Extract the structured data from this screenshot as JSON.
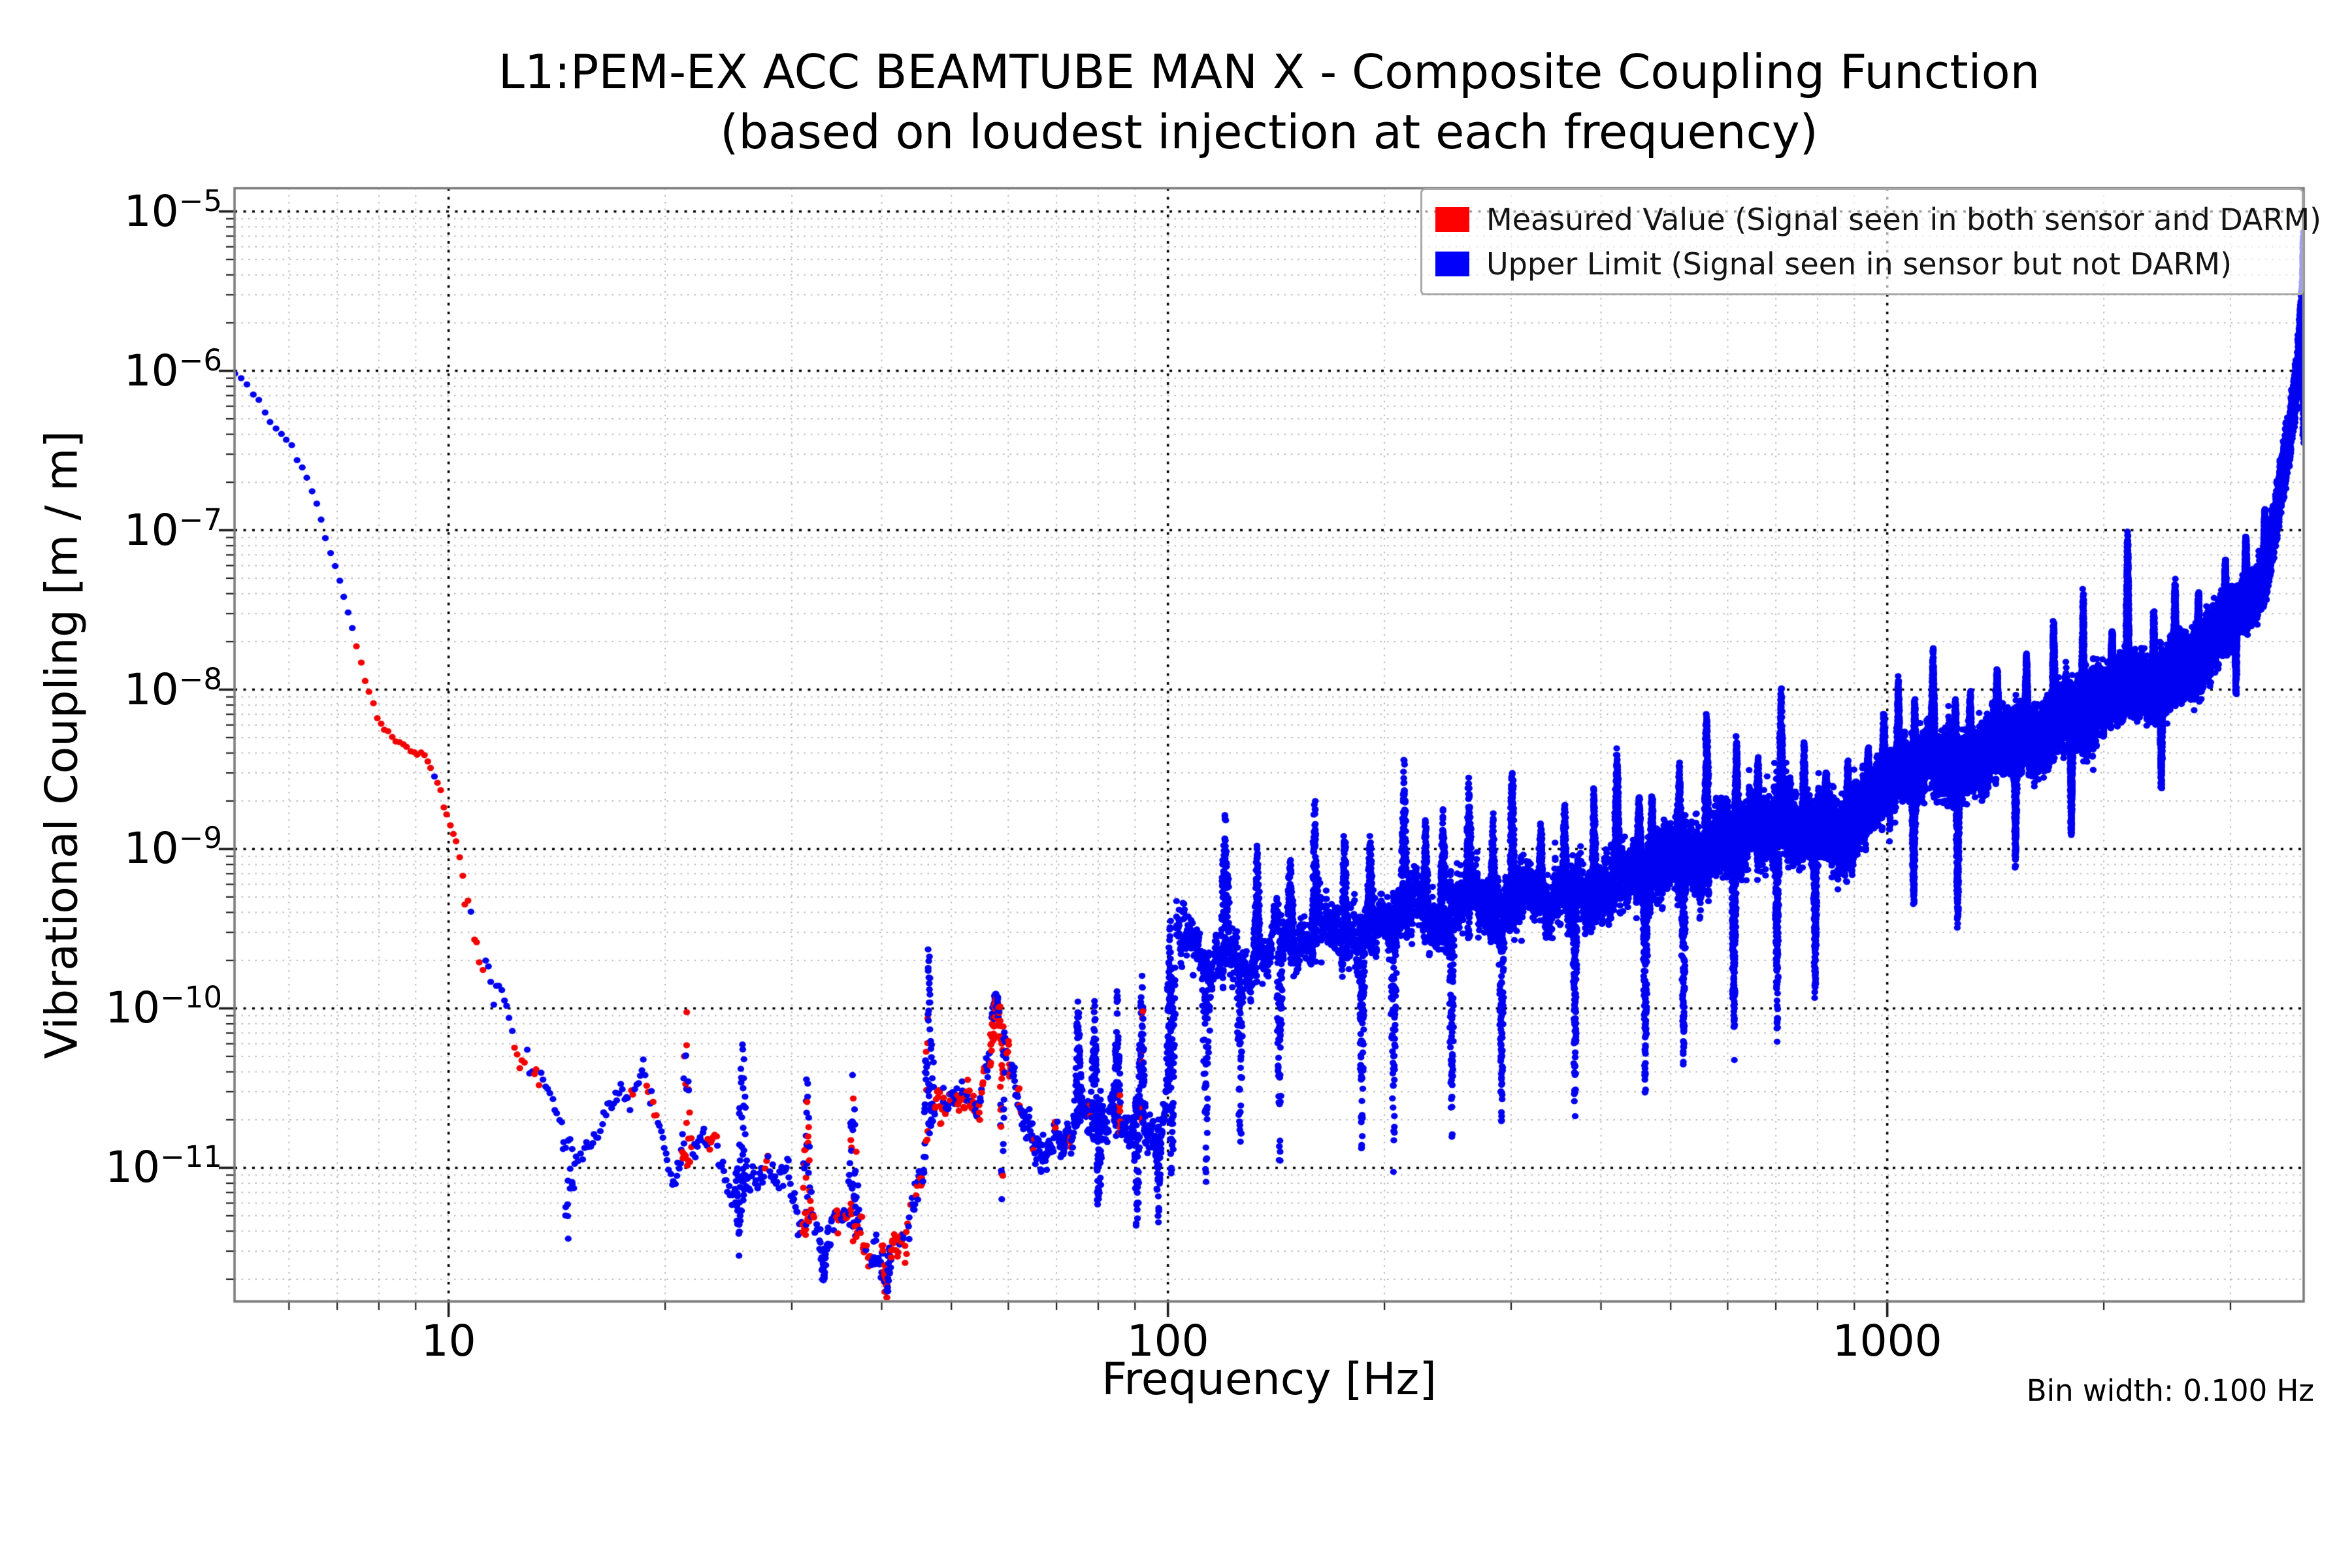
{
  "chart_data": {
    "type": "scatter",
    "title": "L1:PEM-EX ACC BEAMTUBE MAN X - Composite Coupling Function",
    "subtitle": "(based on loudest injection at each frequency)",
    "xlabel": "Frequency [Hz]",
    "ylabel": "Vibrational Coupling [m / m]",
    "annotation": "Bin width: 0.100 Hz",
    "xscale": "log",
    "yscale": "log",
    "grid": "major-and-minor-dotted",
    "legend_position": "upper right",
    "xlim": [
      5.04,
      3792
    ],
    "ylim": [
      1.45e-12,
      1.4e-05
    ],
    "x_ticks": [
      {
        "v": 10,
        "label": "10"
      },
      {
        "v": 100,
        "label": "100"
      },
      {
        "v": 1000,
        "label": "1000"
      }
    ],
    "y_ticks": [
      {
        "exp": -5,
        "base": "10",
        "sup": "−5"
      },
      {
        "exp": -6,
        "base": "10",
        "sup": "−6"
      },
      {
        "exp": -7,
        "base": "10",
        "sup": "−7"
      },
      {
        "exp": -8,
        "base": "10",
        "sup": "−8"
      },
      {
        "exp": -9,
        "base": "10",
        "sup": "−9"
      },
      {
        "exp": -10,
        "base": "10",
        "sup": "−10"
      },
      {
        "exp": -11,
        "base": "10",
        "sup": "−11"
      }
    ],
    "legend": [
      {
        "label": "Measured Value (Signal seen in both sensor and DARM)",
        "color": "#fd0000",
        "series": "measured"
      },
      {
        "label": "Upper Limit (Signal seen in sensor but not DARM)",
        "color": "#0000fb",
        "series": "upper_limit"
      }
    ],
    "style": {
      "marker_red": "#f40000",
      "marker_blue": "#0101f2",
      "marker_diameter_px": 10,
      "grid_major": "#000000",
      "grid_minor": "#b9b9b9",
      "spine": "#7a7a7a",
      "tick": "#1a1a1a",
      "legend_border": "#a8a8a8",
      "legend_bg_alpha": 0.62
    },
    "bin_width_hz": 0.1,
    "generation_note": "Scatter of ~38000 0.1-Hz bins reconstructed from envelope anchors [Hz, log10(coupling)], regions [f0,f1,log-spread,red-fraction], spikes/dips [Hz, half-width Hz, target log10].",
    "seed": 7,
    "fmin": 5.05,
    "fmax": 3795,
    "envelope": [
      [
        5.0,
        -6.0
      ],
      [
        5.3,
        -6.3
      ],
      [
        5.6,
        -6.5
      ],
      [
        5.9,
        -6.6
      ],
      [
        6.2,
        -6.85
      ],
      [
        6.5,
        -7.1
      ],
      [
        6.8,
        -7.45
      ],
      [
        7.1,
        -7.75
      ],
      [
        7.35,
        -8.0
      ],
      [
        7.5,
        -8.3
      ],
      [
        8.0,
        -8.42
      ],
      [
        8.6,
        -8.38
      ],
      [
        9.2,
        -8.45
      ],
      [
        9.5,
        -8.7
      ],
      [
        9.8,
        -8.95
      ],
      [
        10.1,
        -9.15
      ],
      [
        10.4,
        -9.5
      ],
      [
        10.7,
        -9.75
      ],
      [
        11.2,
        -10.0
      ],
      [
        11.8,
        -10.2
      ],
      [
        12.4,
        -10.4
      ],
      [
        13.0,
        -10.5
      ],
      [
        13.6,
        -10.65
      ],
      [
        14.2,
        -10.85
      ],
      [
        14.8,
        -11.05
      ],
      [
        15.4,
        -10.95
      ],
      [
        16.0,
        -10.75
      ],
      [
        16.8,
        -10.5
      ],
      [
        17.6,
        -10.6
      ],
      [
        18.3,
        -10.35
      ],
      [
        19.0,
        -10.65
      ],
      [
        19.8,
        -10.95
      ],
      [
        20.8,
        -11.1
      ],
      [
        21.8,
        -10.75
      ],
      [
        22.8,
        -10.85
      ],
      [
        23.8,
        -11.0
      ],
      [
        25.0,
        -11.15
      ],
      [
        26.2,
        -10.95
      ],
      [
        27.4,
        -11.1
      ],
      [
        28.6,
        -11.05
      ],
      [
        30.0,
        -11.15
      ],
      [
        31.5,
        -11.3
      ],
      [
        33.0,
        -11.4
      ],
      [
        34.5,
        -11.35
      ],
      [
        36.0,
        -11.3
      ],
      [
        37.5,
        -11.45
      ],
      [
        39.0,
        -11.55
      ],
      [
        40.5,
        -11.55
      ],
      [
        42.0,
        -11.45
      ],
      [
        43.5,
        -11.25
      ],
      [
        45.0,
        -11.0
      ],
      [
        46.0,
        -10.75
      ],
      [
        47.5,
        -10.6
      ],
      [
        49.0,
        -10.62
      ],
      [
        50.5,
        -10.55
      ],
      [
        52.0,
        -10.6
      ],
      [
        54.0,
        -10.5
      ],
      [
        56.0,
        -10.28
      ],
      [
        57.5,
        -10.05
      ],
      [
        58.8,
        -10.2
      ],
      [
        60.0,
        -10.3
      ],
      [
        61.5,
        -10.55
      ],
      [
        63.0,
        -10.8
      ],
      [
        65.0,
        -10.85
      ],
      [
        67.0,
        -10.9
      ],
      [
        69.0,
        -10.8
      ],
      [
        71.0,
        -10.75
      ],
      [
        73.5,
        -10.8
      ],
      [
        76.0,
        -10.62
      ],
      [
        78.5,
        -10.8
      ],
      [
        81.0,
        -10.62
      ],
      [
        84.0,
        -10.7
      ],
      [
        87.0,
        -10.8
      ],
      [
        90.0,
        -10.65
      ],
      [
        93.0,
        -10.78
      ],
      [
        96.0,
        -10.9
      ],
      [
        98.5,
        -10.7
      ],
      [
        100.0,
        -10.3
      ],
      [
        101.5,
        -9.85
      ],
      [
        103.0,
        -9.62
      ],
      [
        105.0,
        -9.55
      ],
      [
        108.0,
        -9.6
      ],
      [
        112.0,
        -9.7
      ],
      [
        116.0,
        -9.72
      ],
      [
        120.0,
        -9.55
      ],
      [
        125.0,
        -9.68
      ],
      [
        130.0,
        -9.78
      ],
      [
        136.0,
        -9.6
      ],
      [
        142.0,
        -9.52
      ],
      [
        150.0,
        -9.6
      ],
      [
        158.0,
        -9.52
      ],
      [
        166.0,
        -9.45
      ],
      [
        175.0,
        -9.55
      ],
      [
        185.0,
        -9.6
      ],
      [
        195.0,
        -9.5
      ],
      [
        207.0,
        -9.42
      ],
      [
        220.0,
        -9.32
      ],
      [
        235.0,
        -9.45
      ],
      [
        250.0,
        -9.35
      ],
      [
        265.0,
        -9.28
      ],
      [
        280.0,
        -9.4
      ],
      [
        300.0,
        -9.3
      ],
      [
        320.0,
        -9.25
      ],
      [
        340.0,
        -9.35
      ],
      [
        360.0,
        -9.27
      ],
      [
        385.0,
        -9.3
      ],
      [
        410.0,
        -9.2
      ],
      [
        435.0,
        -9.12
      ],
      [
        460.0,
        -9.2
      ],
      [
        490.0,
        -9.08
      ],
      [
        520.0,
        -9.02
      ],
      [
        550.0,
        -9.1
      ],
      [
        580.0,
        -8.95
      ],
      [
        610.0,
        -9.0
      ],
      [
        645.0,
        -8.88
      ],
      [
        680.0,
        -8.92
      ],
      [
        715.0,
        -8.78
      ],
      [
        750.0,
        -8.88
      ],
      [
        790.0,
        -8.9
      ],
      [
        830.0,
        -8.85
      ],
      [
        870.0,
        -8.95
      ],
      [
        910.0,
        -8.82
      ],
      [
        950.0,
        -8.72
      ],
      [
        1000.0,
        -8.62
      ],
      [
        1050.0,
        -8.48
      ],
      [
        1100.0,
        -8.52
      ],
      [
        1150.0,
        -8.38
      ],
      [
        1200.0,
        -8.48
      ],
      [
        1250.0,
        -8.55
      ],
      [
        1300.0,
        -8.42
      ],
      [
        1360.0,
        -8.45
      ],
      [
        1420.0,
        -8.3
      ],
      [
        1480.0,
        -8.35
      ],
      [
        1550.0,
        -8.28
      ],
      [
        1620.0,
        -8.33
      ],
      [
        1700.0,
        -8.22
      ],
      [
        1780.0,
        -8.12
      ],
      [
        1860.0,
        -8.22
      ],
      [
        1950.0,
        -8.08
      ],
      [
        2050.0,
        -8.02
      ],
      [
        2150.0,
        -7.95
      ],
      [
        2250.0,
        -7.98
      ],
      [
        2350.0,
        -8.02
      ],
      [
        2450.0,
        -7.92
      ],
      [
        2550.0,
        -7.85
      ],
      [
        2650.0,
        -7.88
      ],
      [
        2750.0,
        -7.78
      ],
      [
        2850.0,
        -7.68
      ],
      [
        2950.0,
        -7.6
      ],
      [
        3050.0,
        -7.52
      ],
      [
        3150.0,
        -7.45
      ],
      [
        3250.0,
        -7.42
      ],
      [
        3350.0,
        -7.28
      ],
      [
        3430.0,
        -7.08
      ],
      [
        3490.0,
        -6.85
      ],
      [
        3540.0,
        -6.65
      ],
      [
        3590.0,
        -6.5
      ],
      [
        3640.0,
        -6.35
      ],
      [
        3690.0,
        -6.15
      ],
      [
        3730.0,
        -5.95
      ],
      [
        3760.0,
        -5.7
      ],
      [
        3780.0,
        -5.5
      ],
      [
        3795.0,
        -5.3
      ]
    ],
    "regions": [
      [
        5.0,
        7.4,
        0.05,
        0.0
      ],
      [
        7.4,
        9.4,
        0.07,
        0.9
      ],
      [
        9.4,
        10.5,
        0.09,
        0.75
      ],
      [
        10.5,
        13.2,
        0.2,
        0.4
      ],
      [
        13.2,
        15.5,
        0.18,
        0.12
      ],
      [
        15.5,
        21.0,
        0.17,
        0.1
      ],
      [
        21.0,
        29.0,
        0.2,
        0.17
      ],
      [
        29.0,
        45.0,
        0.22,
        0.42
      ],
      [
        45.0,
        53.0,
        0.18,
        0.32
      ],
      [
        53.0,
        62.0,
        0.22,
        0.45
      ],
      [
        62.0,
        100.0,
        0.19,
        0.05
      ],
      [
        100.0,
        105.0,
        0.42,
        0.0
      ],
      [
        105.0,
        200.0,
        0.26,
        0.0
      ],
      [
        200.0,
        450.0,
        0.27,
        0.0
      ],
      [
        450.0,
        1000.0,
        0.29,
        0.0
      ],
      [
        1000.0,
        2000.0,
        0.25,
        0.0
      ],
      [
        2000.0,
        3000.0,
        0.22,
        0.0
      ],
      [
        3000.0,
        3800.0,
        0.18,
        0.0
      ]
    ],
    "spikes": [
      [
        21.4,
        0.4,
        -9.85
      ],
      [
        25.6,
        0.5,
        -10.0
      ],
      [
        31.5,
        0.6,
        -10.35
      ],
      [
        36.5,
        0.7,
        -10.3
      ],
      [
        46.5,
        0.9,
        -9.55
      ],
      [
        57.5,
        1.0,
        -9.9
      ],
      [
        75.0,
        1.0,
        -9.9
      ],
      [
        79.0,
        0.9,
        -9.78
      ],
      [
        85.0,
        1.1,
        -9.82
      ],
      [
        92.0,
        1.2,
        -9.75
      ],
      [
        100.6,
        1.2,
        -9.3
      ],
      [
        120.0,
        2.0,
        -8.65
      ],
      [
        133.0,
        1.6,
        -8.95
      ],
      [
        148.0,
        1.8,
        -9.0
      ],
      [
        160.0,
        2.0,
        -8.62
      ],
      [
        176.0,
        2.0,
        -8.85
      ],
      [
        191.0,
        2.2,
        -8.9
      ],
      [
        213.0,
        2.5,
        -8.42
      ],
      [
        228.0,
        2.2,
        -8.8
      ],
      [
        241.0,
        2.2,
        -8.72
      ],
      [
        262.0,
        2.6,
        -8.48
      ],
      [
        283.0,
        2.6,
        -8.75
      ],
      [
        301.0,
        3.0,
        -8.42
      ],
      [
        330.0,
        3.0,
        -8.82
      ],
      [
        356.0,
        3.2,
        -8.7
      ],
      [
        391.0,
        3.5,
        -8.6
      ],
      [
        421.0,
        4.0,
        -8.32
      ],
      [
        452.0,
        4.0,
        -8.65
      ],
      [
        471.0,
        4.0,
        -8.62
      ],
      [
        514.0,
        4.5,
        -8.45
      ],
      [
        561.0,
        5.0,
        -8.05
      ],
      [
        617.0,
        5.0,
        -8.28
      ],
      [
        661.0,
        5.5,
        -8.42
      ],
      [
        712.0,
        6.0,
        -7.97
      ],
      [
        766.0,
        5.5,
        -8.32
      ],
      [
        822.0,
        6.0,
        -8.5
      ],
      [
        881.0,
        6.0,
        -8.42
      ],
      [
        941.0,
        5.5,
        -8.35
      ],
      [
        989.0,
        6.0,
        -8.12
      ],
      [
        1036.0,
        6.5,
        -7.9
      ],
      [
        1092.0,
        7.0,
        -8.05
      ],
      [
        1158.0,
        8.0,
        -7.72
      ],
      [
        1244.0,
        8.0,
        -8.05
      ],
      [
        1304.0,
        8.0,
        -8.0
      ],
      [
        1422.0,
        9.0,
        -7.86
      ],
      [
        1562.0,
        9.0,
        -7.76
      ],
      [
        1703.0,
        10.0,
        -7.56
      ],
      [
        1872.0,
        10.0,
        -7.36
      ],
      [
        2054.0,
        11.0,
        -7.62
      ],
      [
        2158.0,
        12.0,
        -6.98
      ],
      [
        2347.0,
        12.0,
        -7.5
      ],
      [
        2512.0,
        12.0,
        -7.3
      ],
      [
        2708.0,
        13.0,
        -7.36
      ],
      [
        2951.0,
        13.0,
        -7.18
      ],
      [
        3152.0,
        13.0,
        -7.02
      ],
      [
        3349.0,
        13.0,
        -6.86
      ],
      [
        3790.0,
        8.0,
        -5.18
      ]
    ],
    "dips": [
      [
        14.7,
        0.4,
        -11.6
      ],
      [
        25.4,
        0.5,
        -11.65
      ],
      [
        33.2,
        0.6,
        -11.75
      ],
      [
        40.6,
        0.9,
        -11.82
      ],
      [
        58.8,
        0.7,
        -11.38
      ],
      [
        80.2,
        1.0,
        -11.45
      ],
      [
        90.5,
        1.1,
        -11.5
      ],
      [
        97.0,
        0.9,
        -11.42
      ],
      [
        101.2,
        1.4,
        -11.15
      ],
      [
        113.0,
        1.6,
        -11.2
      ],
      [
        126.0,
        1.6,
        -10.95
      ],
      [
        143.0,
        1.7,
        -11.05
      ],
      [
        186.0,
        2.0,
        -10.98
      ],
      [
        206.0,
        2.0,
        -11.12
      ],
      [
        248.0,
        2.5,
        -10.85
      ],
      [
        291.0,
        2.6,
        -10.88
      ],
      [
        368.0,
        3.0,
        -10.72
      ],
      [
        461.0,
        4.0,
        -10.58
      ],
      [
        521.0,
        4.5,
        -10.45
      ],
      [
        612.0,
        5.0,
        -10.35
      ],
      [
        703.0,
        5.5,
        -10.28
      ],
      [
        794.0,
        5.0,
        -10.05
      ],
      [
        1088.0,
        8.0,
        -9.42
      ],
      [
        1253.0,
        8.0,
        -9.52
      ],
      [
        1508.0,
        9.0,
        -9.15
      ],
      [
        1803.0,
        10.0,
        -8.95
      ],
      [
        2404.0,
        12.0,
        -8.65
      ],
      [
        3054.0,
        12.0,
        -8.05
      ],
      [
        3788.0,
        7.0,
        -6.5
      ]
    ]
  }
}
